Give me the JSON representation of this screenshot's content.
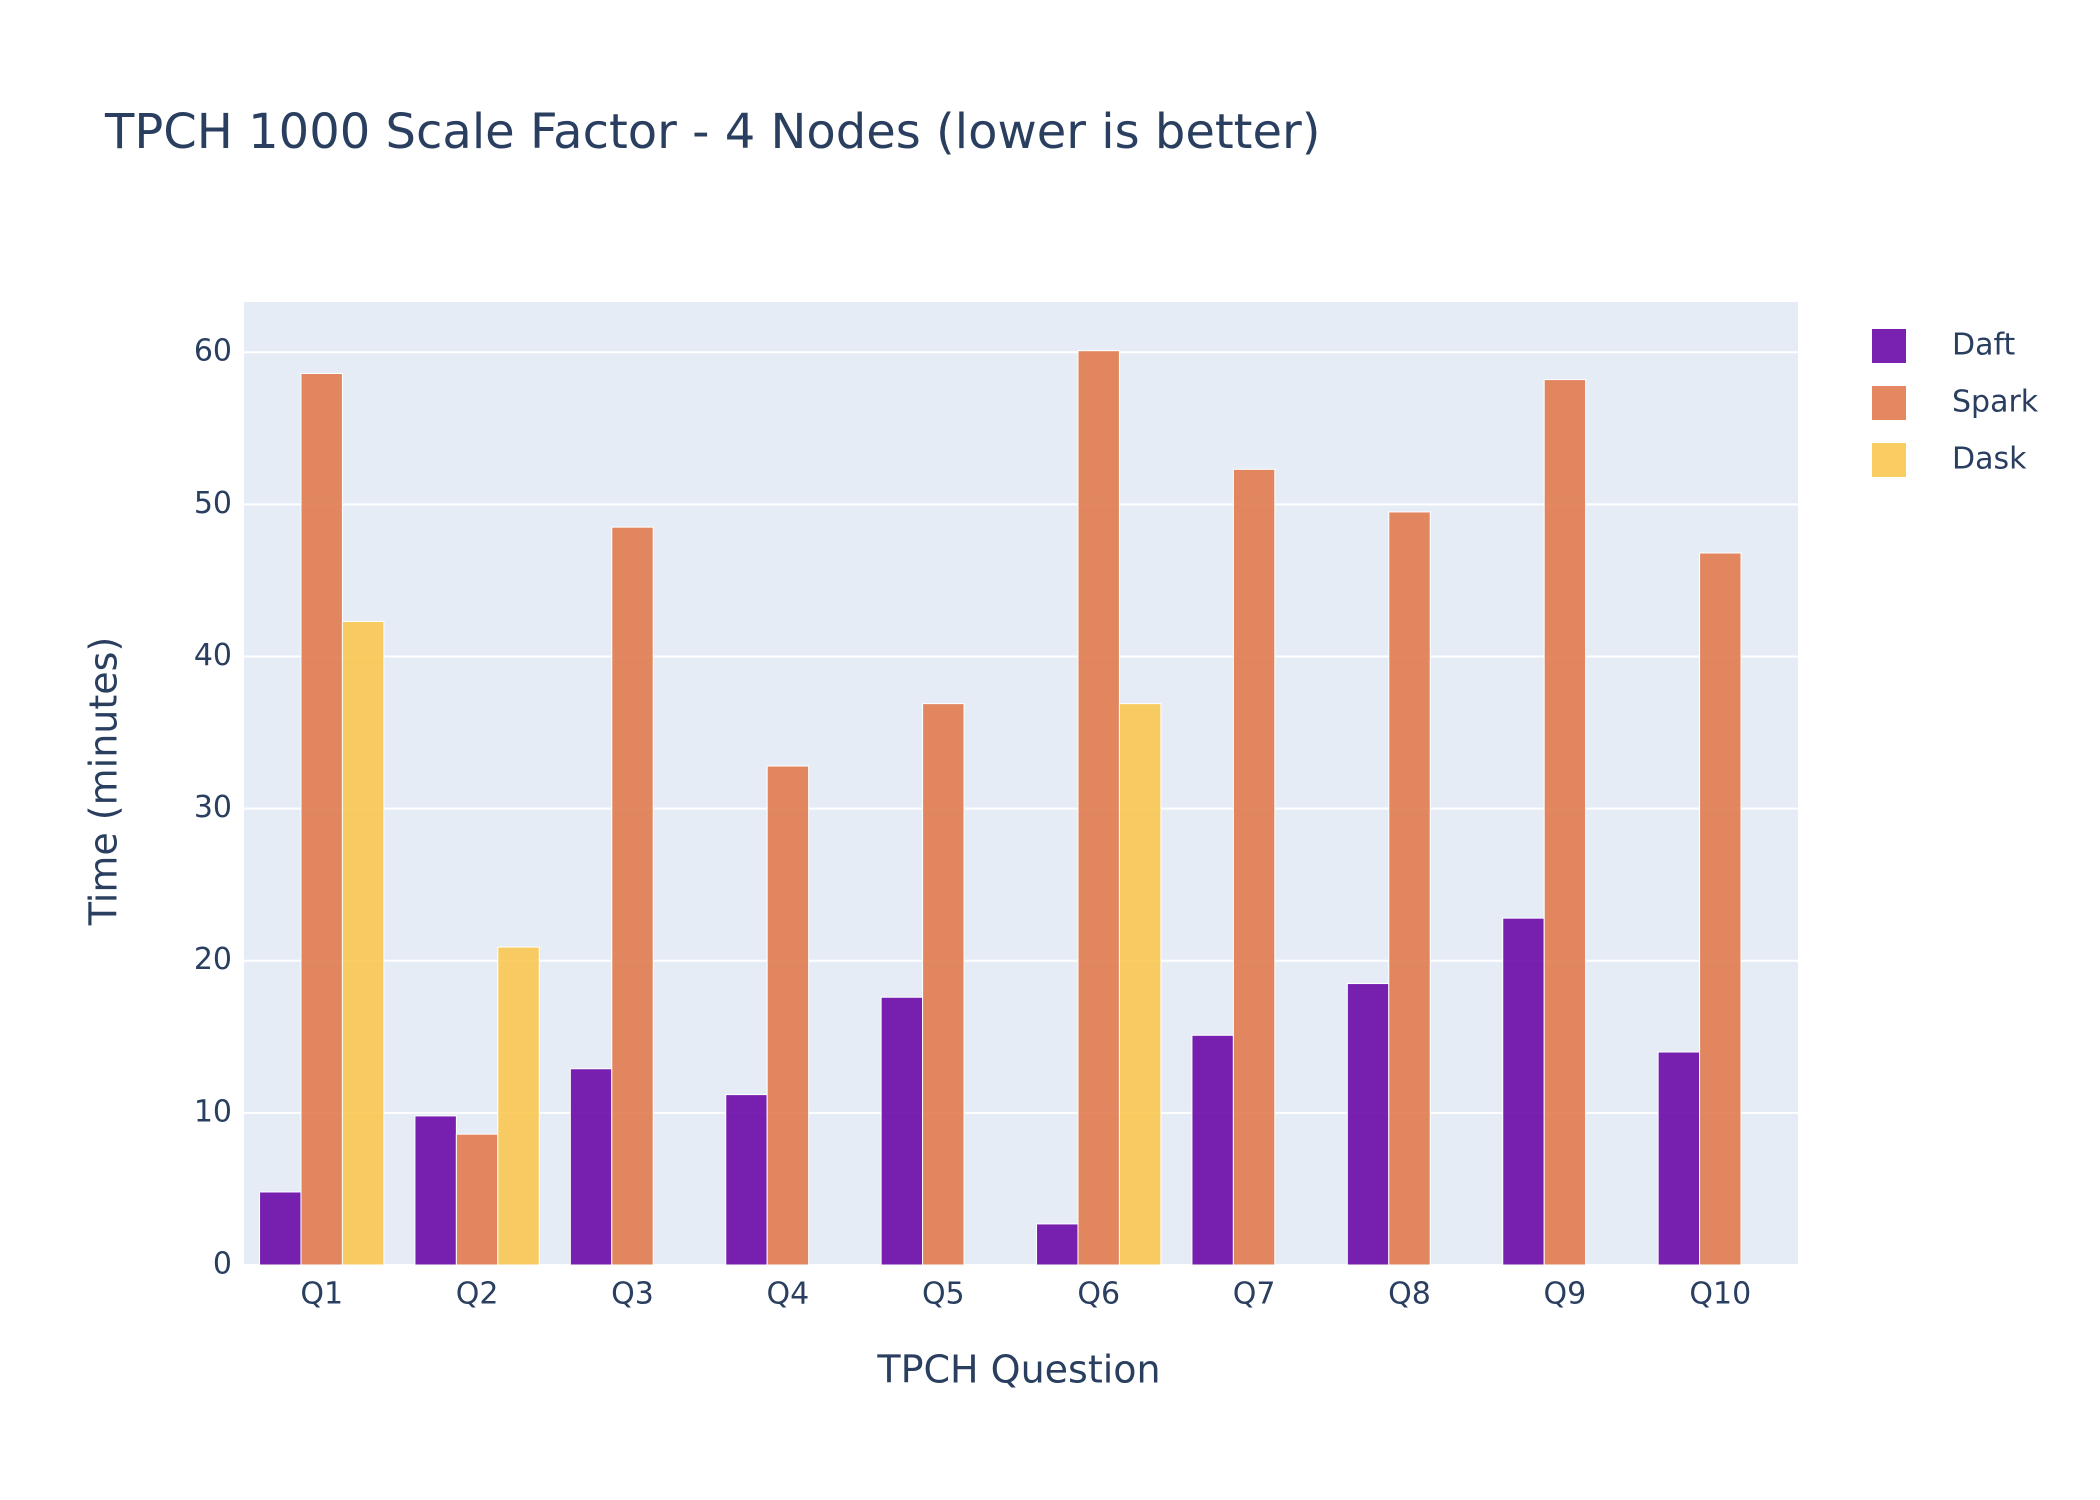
{
  "chart_data": {
    "type": "bar",
    "title": "TPCH 1000 Scale Factor - 4 Nodes (lower is better)",
    "x_label": "TPCH Question",
    "y_label": "Time (minutes)",
    "categories": [
      "Q1",
      "Q2",
      "Q3",
      "Q4",
      "Q5",
      "Q6",
      "Q7",
      "Q8",
      "Q9",
      "Q10"
    ],
    "series": [
      {
        "name": "Daft",
        "color": "#6a0aa8",
        "values": [
          4.8,
          9.8,
          12.9,
          11.2,
          17.6,
          2.7,
          15.1,
          18.5,
          22.8,
          14.0
        ]
      },
      {
        "name": "Spark",
        "color": "#e07b4f",
        "values": [
          58.6,
          8.6,
          48.5,
          32.8,
          36.9,
          60.1,
          52.3,
          49.5,
          58.2,
          46.8
        ]
      },
      {
        "name": "Dask",
        "color": "#fac852",
        "values": [
          42.3,
          20.9,
          null,
          null,
          null,
          36.9,
          null,
          null,
          null,
          null
        ]
      }
    ],
    "ylim": [
      0,
      63.3
    ],
    "yticks": [
      0,
      10,
      20,
      30,
      40,
      50,
      60
    ],
    "grid": true,
    "legend": "top-right"
  }
}
